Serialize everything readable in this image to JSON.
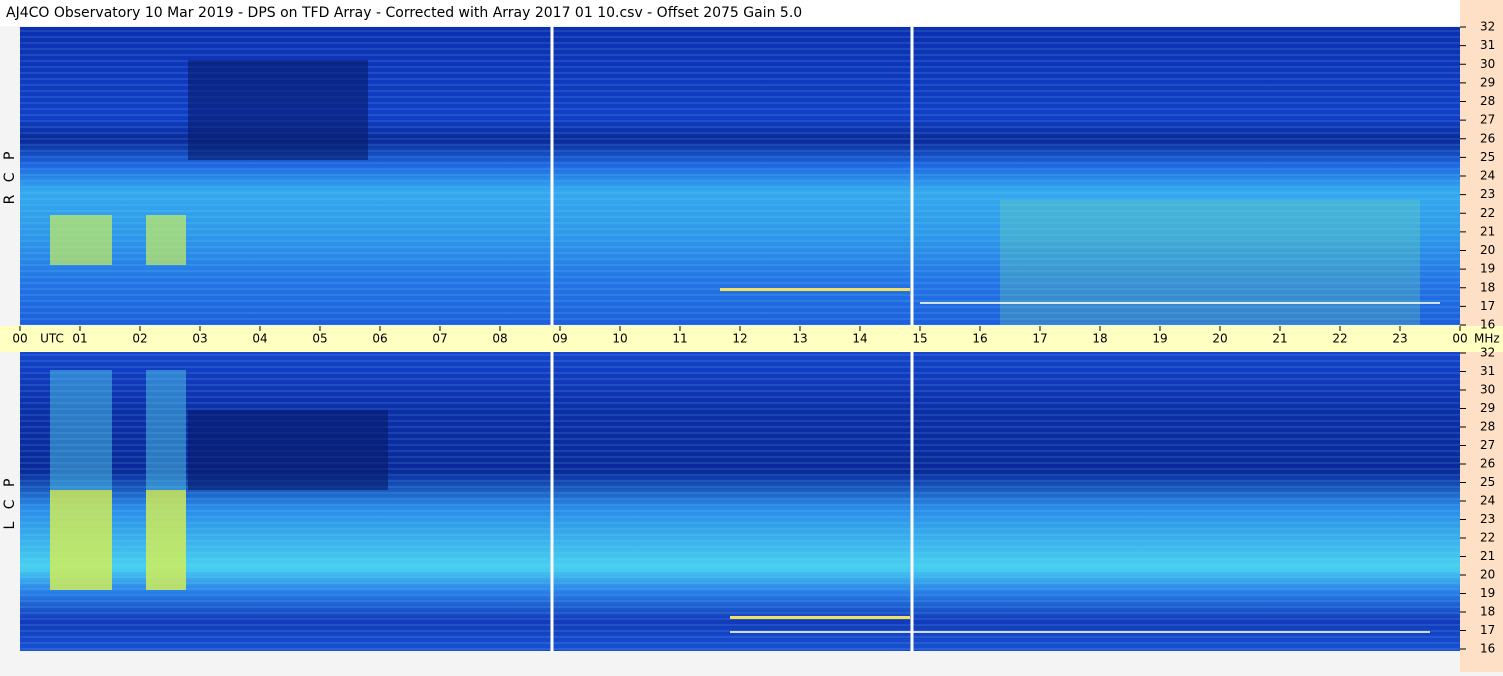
{
  "chart_data": {
    "type": "spectrogram",
    "title": "AJ4CO Observatory  10 Mar 2019  -  DPS on TFD Array  -  Corrected with Array 2017 01 10.csv  -  Offset 2075  Gain 5.0",
    "panels": [
      "R C P",
      "L C P"
    ],
    "time_zone": "UTC",
    "freq_unit": "MHz",
    "xlim": [
      0,
      24
    ],
    "xticks": [
      {
        "value": 0,
        "label": "00"
      },
      {
        "value": 1,
        "label": "01"
      },
      {
        "value": 2,
        "label": "02"
      },
      {
        "value": 3,
        "label": "03"
      },
      {
        "value": 4,
        "label": "04"
      },
      {
        "value": 5,
        "label": "05"
      },
      {
        "value": 6,
        "label": "06"
      },
      {
        "value": 7,
        "label": "07"
      },
      {
        "value": 8,
        "label": "08"
      },
      {
        "value": 9,
        "label": "09"
      },
      10,
      11,
      12,
      13,
      14,
      15,
      16,
      17,
      18,
      19,
      20,
      21,
      22,
      23,
      {
        "value": 24,
        "label": "00"
      }
    ],
    "ylim": [
      16,
      32
    ],
    "yticks": [
      16,
      17,
      18,
      19,
      20,
      21,
      22,
      23,
      24,
      25,
      26,
      27,
      28,
      29,
      30,
      31,
      32
    ]
  }
}
